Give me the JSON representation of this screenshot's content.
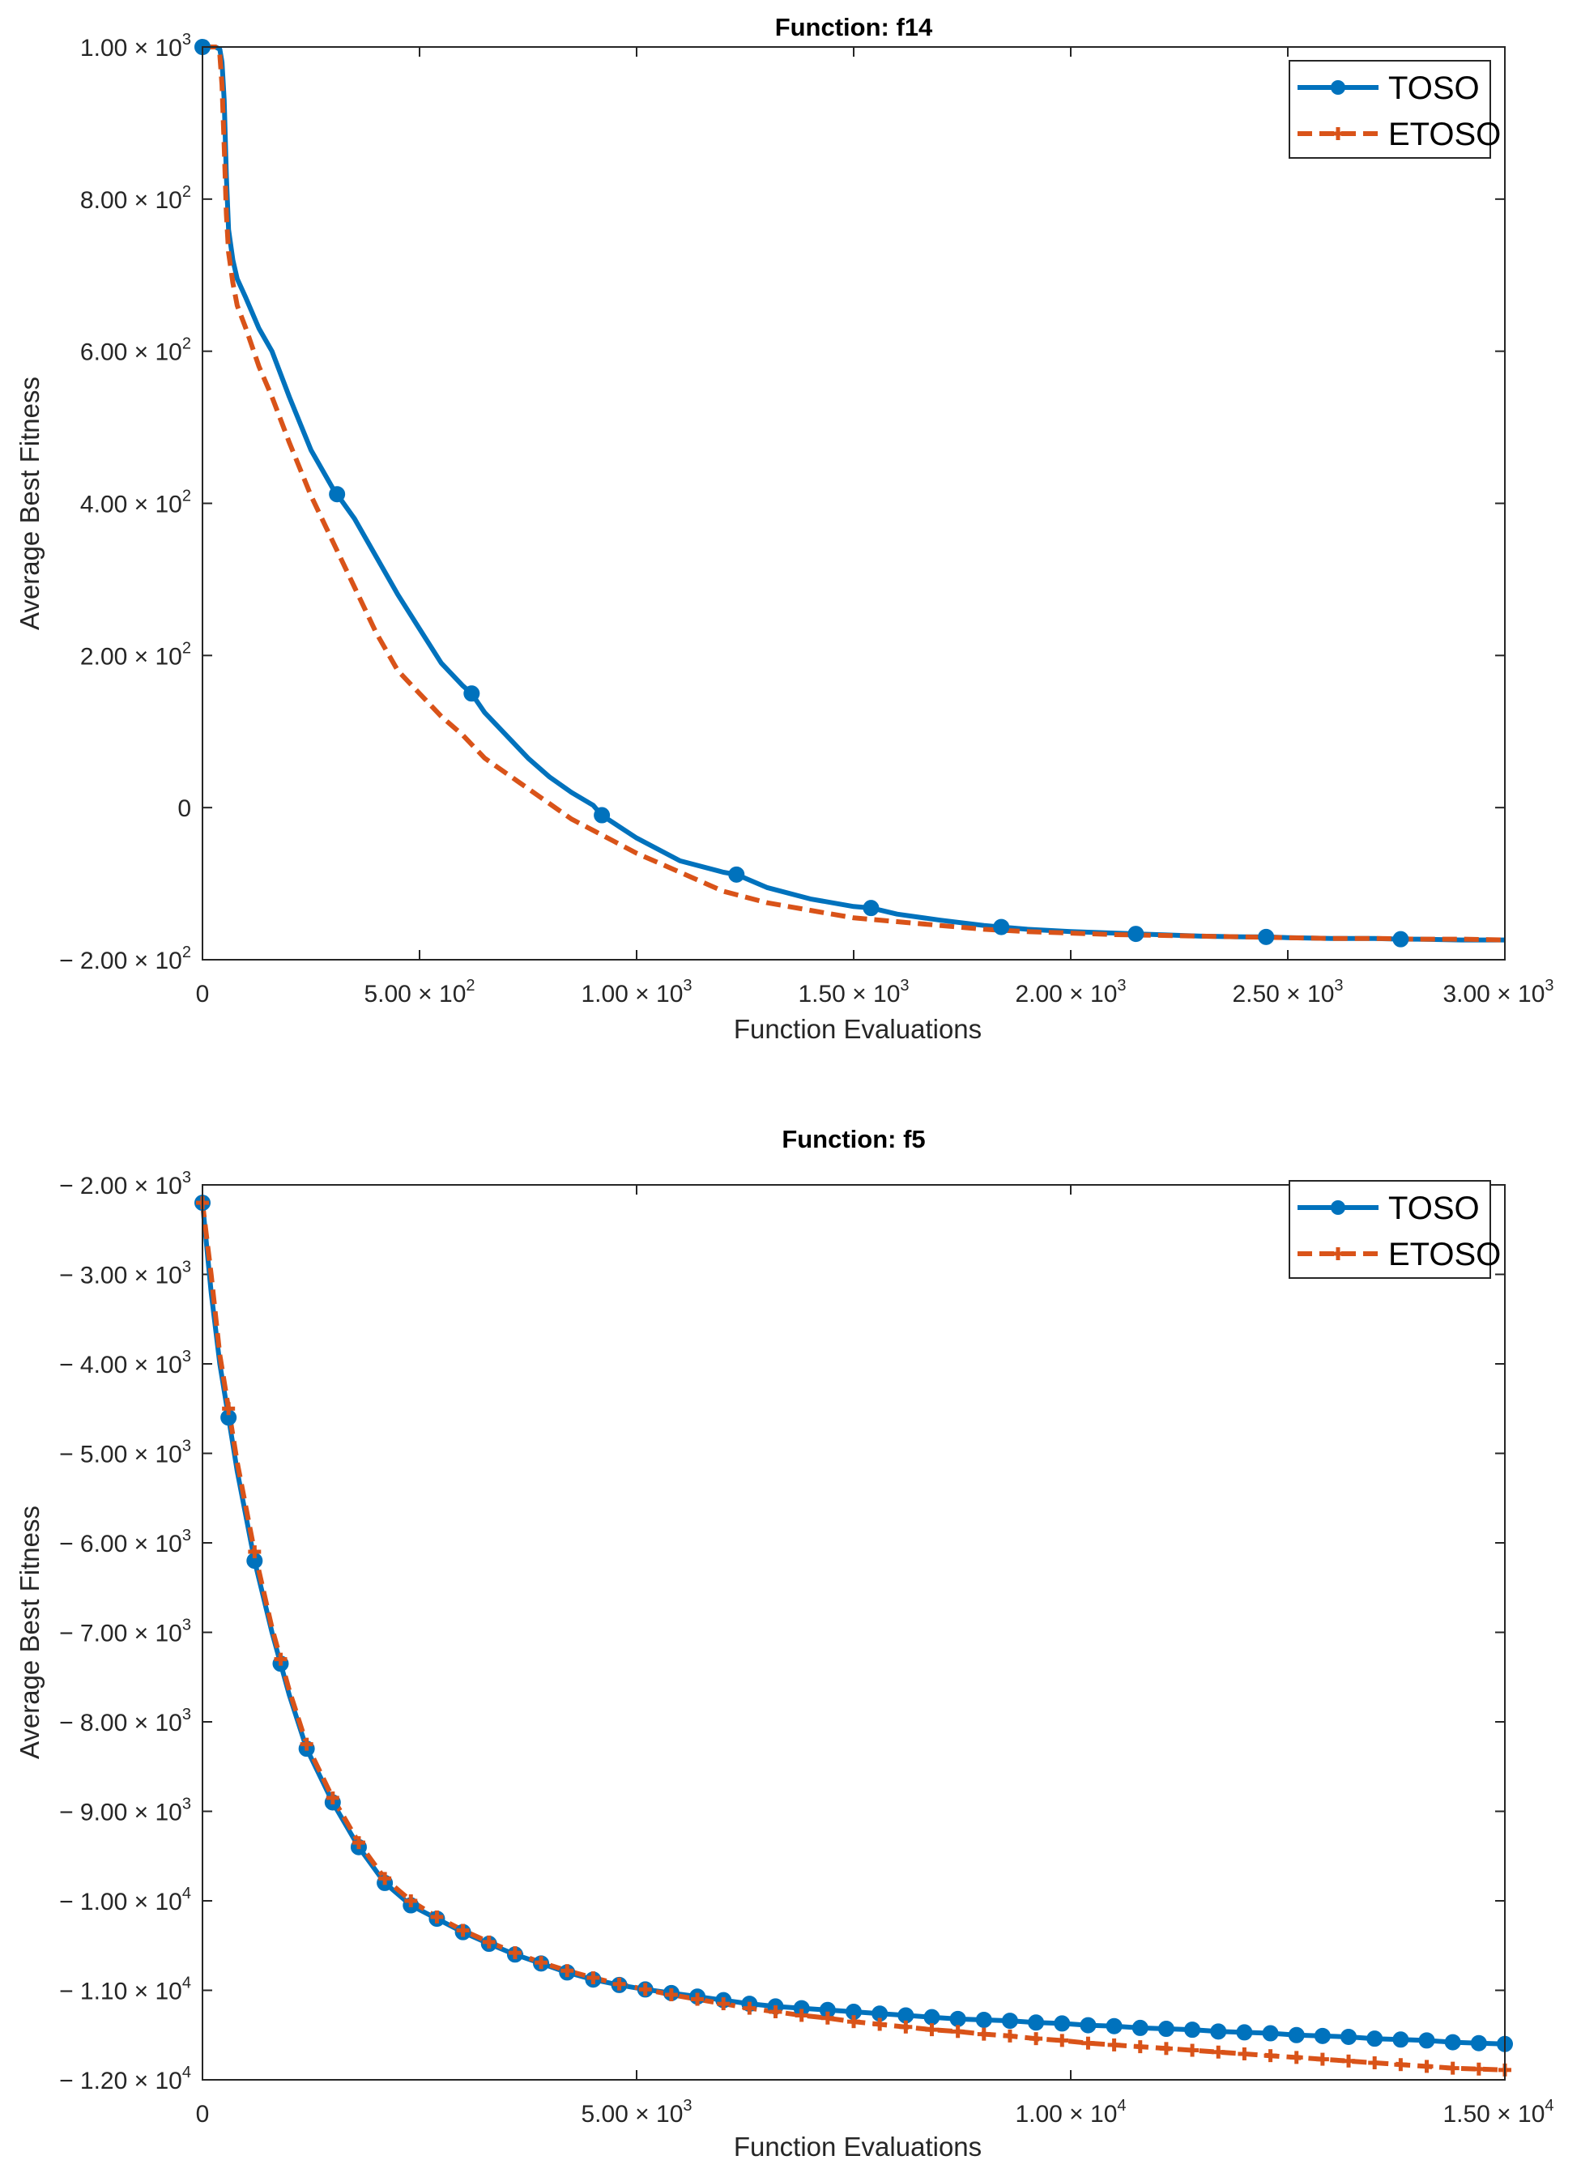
{
  "chart_data": [
    {
      "type": "line",
      "title": "Function: f14",
      "xlabel": "Function Evaluations",
      "ylabel": "Average Best Fitness",
      "xlim": [
        0,
        3000
      ],
      "ylim": [
        -200,
        1000
      ],
      "xticks": [
        {
          "value": 0,
          "label": "0"
        },
        {
          "value": 500,
          "label": "5.00 × 10",
          "exp": "2"
        },
        {
          "value": 1000,
          "label": "1.00 × 10",
          "exp": "3"
        },
        {
          "value": 1500,
          "label": "1.50 × 10",
          "exp": "3"
        },
        {
          "value": 2000,
          "label": "2.00 × 10",
          "exp": "3"
        },
        {
          "value": 2500,
          "label": "2.50 × 10",
          "exp": "3"
        },
        {
          "value": 3000,
          "label": "3.00 × 10",
          "exp": "3"
        }
      ],
      "yticks": [
        {
          "value": -200,
          "label": "− 2.00 × 10",
          "exp": "2"
        },
        {
          "value": 0,
          "label": "0"
        },
        {
          "value": 200,
          "label": "2.00 × 10",
          "exp": "2"
        },
        {
          "value": 400,
          "label": "4.00 × 10",
          "exp": "2"
        },
        {
          "value": 600,
          "label": "6.00 × 10",
          "exp": "2"
        },
        {
          "value": 800,
          "label": "8.00 × 10",
          "exp": "2"
        },
        {
          "value": 1000,
          "label": "1.00 × 10",
          "exp": "3"
        }
      ],
      "legend_position": "top-right",
      "series": [
        {
          "name": "TOSO",
          "color": "#0072BD",
          "style": "solid",
          "marker": "circle",
          "x": [
            0,
            30,
            40,
            45,
            50,
            55,
            60,
            70,
            80,
            100,
            130,
            160,
            200,
            250,
            300,
            350,
            400,
            450,
            500,
            550,
            600,
            620,
            650,
            700,
            750,
            800,
            850,
            900,
            920,
            1000,
            1100,
            1200,
            1230,
            1300,
            1400,
            1500,
            1540,
            1600,
            1700,
            1800,
            1840,
            1900,
            2000,
            2100,
            2150,
            2200,
            2300,
            2400,
            2450,
            2500,
            2600,
            2700,
            2760,
            2800,
            2900,
            3000
          ],
          "y": [
            1000,
            1000,
            997,
            980,
            930,
            830,
            760,
            720,
            695,
            670,
            630,
            600,
            540,
            470,
            420,
            380,
            330,
            280,
            235,
            190,
            160,
            150,
            125,
            95,
            65,
            40,
            20,
            3,
            -10,
            -40,
            -70,
            -85,
            -88,
            -105,
            -120,
            -130,
            -132,
            -140,
            -148,
            -155,
            -157,
            -160,
            -163,
            -165,
            -166,
            -167,
            -169,
            -170,
            -170,
            -171,
            -172,
            -172,
            -173,
            -173,
            -174,
            -174
          ],
          "marker_x": [
            0,
            310,
            620,
            920,
            1230,
            1540,
            1840,
            2150,
            2450,
            2760
          ]
        },
        {
          "name": "ETOSO",
          "color": "#D95319",
          "style": "dashed",
          "marker": "plus",
          "x": [
            0,
            30,
            40,
            45,
            50,
            55,
            60,
            70,
            80,
            100,
            130,
            160,
            200,
            250,
            300,
            350,
            400,
            450,
            500,
            550,
            600,
            650,
            700,
            750,
            800,
            850,
            900,
            950,
            1000,
            1100,
            1200,
            1300,
            1400,
            1500,
            1600,
            1700,
            1800,
            1900,
            2000,
            2100,
            2200,
            2300,
            2400,
            2500,
            2600,
            2700,
            2800,
            2900,
            3000
          ],
          "y": [
            1000,
            1000,
            990,
            950,
            870,
            780,
            730,
            690,
            660,
            630,
            580,
            540,
            480,
            410,
            350,
            290,
            230,
            180,
            150,
            120,
            95,
            65,
            45,
            25,
            5,
            -15,
            -30,
            -45,
            -60,
            -85,
            -110,
            -125,
            -135,
            -145,
            -150,
            -155,
            -160,
            -163,
            -165,
            -167,
            -168,
            -169,
            -170,
            -171,
            -172,
            -172,
            -173,
            -173,
            -174
          ]
        }
      ]
    },
    {
      "type": "line",
      "title": "Function: f5",
      "xlabel": "Function Evaluations",
      "ylabel": "Average Best Fitness",
      "xlim": [
        0,
        15000
      ],
      "ylim": [
        -12000,
        -2000
      ],
      "xticks": [
        {
          "value": 0,
          "label": "0"
        },
        {
          "value": 5000,
          "label": "5.00 × 10",
          "exp": "3"
        },
        {
          "value": 10000,
          "label": "1.00 × 10",
          "exp": "4"
        },
        {
          "value": 15000,
          "label": "1.50 × 10",
          "exp": "4"
        }
      ],
      "yticks": [
        {
          "value": -2000,
          "label": "− 2.00 × 10",
          "exp": "3"
        },
        {
          "value": -3000,
          "label": "− 3.00 × 10",
          "exp": "3"
        },
        {
          "value": -4000,
          "label": "− 4.00 × 10",
          "exp": "3"
        },
        {
          "value": -5000,
          "label": "− 5.00 × 10",
          "exp": "3"
        },
        {
          "value": -6000,
          "label": "− 6.00 × 10",
          "exp": "3"
        },
        {
          "value": -7000,
          "label": "− 7.00 × 10",
          "exp": "3"
        },
        {
          "value": -8000,
          "label": "− 8.00 × 10",
          "exp": "3"
        },
        {
          "value": -9000,
          "label": "− 9.00 × 10",
          "exp": "3"
        },
        {
          "value": -10000,
          "label": "− 1.00 × 10",
          "exp": "4"
        },
        {
          "value": -11000,
          "label": "− 1.10 × 10",
          "exp": "4"
        },
        {
          "value": -12000,
          "label": "− 1.20 × 10",
          "exp": "4"
        }
      ],
      "legend_position": "top-right",
      "series": [
        {
          "name": "TOSO",
          "color": "#0072BD",
          "style": "solid",
          "marker": "circle",
          "x": [
            0,
            100,
            200,
            300,
            400,
            600,
            800,
            1000,
            1200,
            1500,
            1800,
            2100,
            2400,
            2700,
            3000,
            3300,
            3600,
            3900,
            4200,
            4500,
            4800,
            5100,
            5400,
            5700,
            6000,
            6300,
            6600,
            6900,
            7200,
            7500,
            7800,
            8100,
            8400,
            8700,
            9000,
            9300,
            9600,
            9900,
            10200,
            10500,
            10800,
            11100,
            11400,
            11700,
            12000,
            12300,
            12600,
            12900,
            13200,
            13500,
            13800,
            14100,
            14400,
            14700,
            15000
          ],
          "y": [
            -2200,
            -3200,
            -4000,
            -4600,
            -5200,
            -6200,
            -7000,
            -7700,
            -8300,
            -8900,
            -9400,
            -9800,
            -10050,
            -10200,
            -10350,
            -10480,
            -10600,
            -10700,
            -10800,
            -10880,
            -10940,
            -10990,
            -11030,
            -11070,
            -11110,
            -11150,
            -11180,
            -11200,
            -11220,
            -11240,
            -11260,
            -11280,
            -11300,
            -11320,
            -11330,
            -11340,
            -11360,
            -11370,
            -11390,
            -11400,
            -11420,
            -11430,
            -11440,
            -11460,
            -11470,
            -11480,
            -11500,
            -11510,
            -11520,
            -11540,
            -11550,
            -11560,
            -11580,
            -11590,
            -11600
          ],
          "marker_x": [
            0,
            300,
            600,
            900,
            1200,
            1500,
            1800,
            2100,
            2400,
            2700,
            3000,
            3300,
            3600,
            3900,
            4200,
            4500,
            4800,
            5100,
            5400,
            5700,
            6000,
            6300,
            6600,
            6900,
            7200,
            7500,
            7800,
            8100,
            8400,
            8700,
            9000,
            9300,
            9600,
            9900,
            10200,
            10500,
            10800,
            11100,
            11400,
            11700,
            12000,
            12300,
            12600,
            12900,
            13200,
            13500,
            13800,
            14100,
            14400,
            14700,
            15000
          ]
        },
        {
          "name": "ETOSO",
          "color": "#D95319",
          "style": "dashed",
          "marker": "plus",
          "x": [
            0,
            100,
            200,
            300,
            400,
            600,
            800,
            1000,
            1200,
            1500,
            1800,
            2100,
            2400,
            2700,
            3000,
            3300,
            3600,
            3900,
            4200,
            4500,
            4800,
            5100,
            5400,
            5700,
            6000,
            6300,
            6600,
            6900,
            7200,
            7500,
            7800,
            8100,
            8400,
            8700,
            9000,
            9300,
            9600,
            9900,
            10200,
            10500,
            10800,
            11100,
            11400,
            11700,
            12000,
            12300,
            12600,
            12900,
            13200,
            13500,
            13800,
            14100,
            14400,
            14700,
            15000
          ],
          "y": [
            -2200,
            -3000,
            -3900,
            -4500,
            -5100,
            -6100,
            -6950,
            -7650,
            -8250,
            -8850,
            -9350,
            -9750,
            -10000,
            -10180,
            -10330,
            -10460,
            -10580,
            -10690,
            -10780,
            -10860,
            -10930,
            -10990,
            -11050,
            -11100,
            -11150,
            -11200,
            -11240,
            -11280,
            -11310,
            -11350,
            -11380,
            -11410,
            -11440,
            -11460,
            -11490,
            -11510,
            -11540,
            -11560,
            -11590,
            -11610,
            -11630,
            -11650,
            -11670,
            -11690,
            -11710,
            -11730,
            -11750,
            -11770,
            -11790,
            -11810,
            -11830,
            -11850,
            -11870,
            -11880,
            -11890
          ],
          "marker_x": [
            0,
            300,
            600,
            900,
            1200,
            1500,
            1800,
            2100,
            2400,
            2700,
            3000,
            3300,
            3600,
            3900,
            4200,
            4500,
            4800,
            5100,
            5400,
            5700,
            6000,
            6300,
            6600,
            6900,
            7200,
            7500,
            7800,
            8100,
            8400,
            8700,
            9000,
            9300,
            9600,
            9900,
            10200,
            10500,
            10800,
            11100,
            11400,
            11700,
            12000,
            12300,
            12600,
            12900,
            13200,
            13500,
            13800,
            14100,
            14400,
            14700,
            15000
          ]
        }
      ]
    }
  ]
}
